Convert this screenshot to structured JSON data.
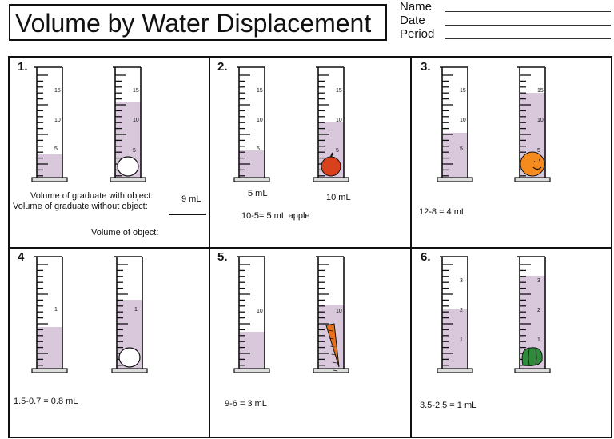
{
  "header": {
    "title": "Volume by Water Displacement",
    "fields": [
      {
        "label": "Name"
      },
      {
        "label": "Date"
      },
      {
        "label": "Period"
      }
    ]
  },
  "panels": [
    {
      "number": "1.",
      "scale_labels": [
        "15",
        "10",
        "5"
      ],
      "object": "egg",
      "prompt_with": "Volume of graduate with object:",
      "prompt_without": "Volume of graduate without object:",
      "prompt_object": "Volume of object:",
      "value_with": "9 mL"
    },
    {
      "number": "2.",
      "scale_labels": [
        "15",
        "10",
        "5"
      ],
      "object": "apple",
      "left_reading": "5 mL",
      "right_reading": "10 mL",
      "answer": "10-5= 5 mL apple"
    },
    {
      "number": "3.",
      "scale_labels": [
        "15",
        "10",
        "5"
      ],
      "object": "orange",
      "answer": "12-8 = 4 mL"
    },
    {
      "number": "4",
      "scale_labels": [
        "1"
      ],
      "object": "egg",
      "answer": "1.5-0.7 = 0.8 mL"
    },
    {
      "number": "5.",
      "scale_labels": [
        "10"
      ],
      "object": "carrot",
      "answer": "9-6 = 3 mL"
    },
    {
      "number": "6.",
      "scale_labels": [
        "3",
        "2",
        "1"
      ],
      "object": "pepper",
      "answer": "3.5-2.5 = 1 mL"
    }
  ],
  "colors": {
    "water": "#d9c7dc",
    "apple": "#d9401c",
    "orange": "#f58a1f",
    "carrot": "#e8701a",
    "pepper": "#2f8a3c"
  }
}
